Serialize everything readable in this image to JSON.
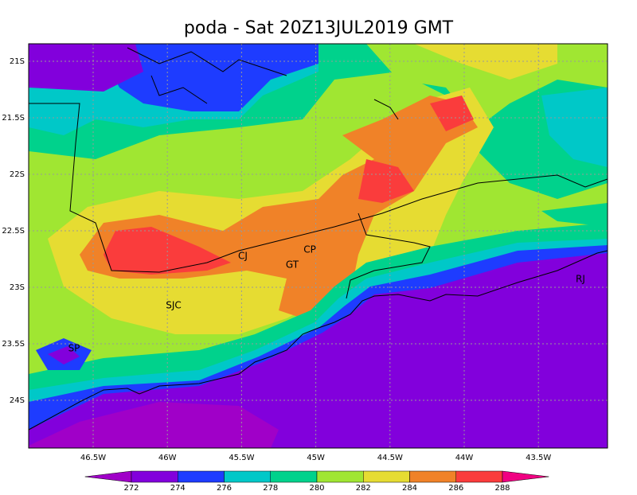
{
  "map": {
    "title": "poda - Sat 20Z13JUL2019 GMT",
    "lat_labels": [
      "21S",
      "21.5S",
      "22S",
      "22.5S",
      "23S",
      "23.5S",
      "24S"
    ],
    "lon_labels": [
      "46.5W",
      "46W",
      "45.5W",
      "45W",
      "44.5W",
      "44W",
      "43.5W"
    ],
    "places": [
      "CJ",
      "CP",
      "GT",
      "SJC",
      "SP",
      "RJ"
    ],
    "colorbar": {
      "levels": [
        272,
        274,
        276,
        278,
        280,
        282,
        284,
        286,
        288
      ],
      "colors": [
        "#a000c8",
        "#8200dc",
        "#1e3cff",
        "#00c8c8",
        "#00d28c",
        "#a0e632",
        "#e6dc32",
        "#f08228",
        "#fa3c3c",
        "#f00082"
      ]
    }
  }
}
